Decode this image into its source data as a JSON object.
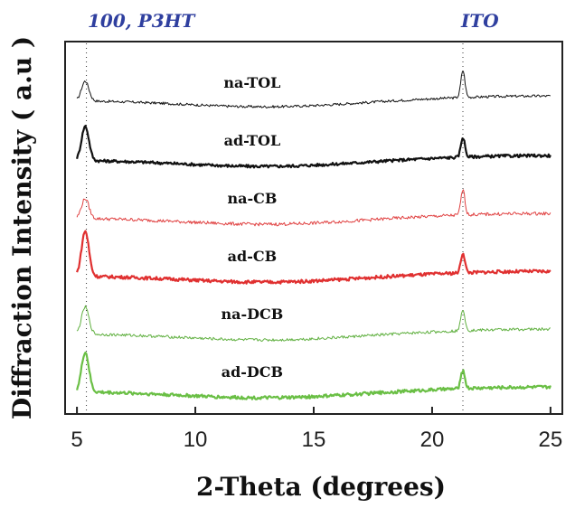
{
  "chart_data": {
    "type": "line",
    "xlabel": "2-Theta (degrees)",
    "ylabel": "Diffraction Intensity ( a.u )",
    "xlim": [
      4.5,
      25.5
    ],
    "xticks": [
      5,
      10,
      15,
      20,
      25
    ],
    "y_tick_labels": false,
    "grid": false,
    "annotations": [
      {
        "text": "100, P3HT",
        "x": 5.4
      },
      {
        "text": "ITO",
        "x": 21.3
      }
    ],
    "reference_lines_x": [
      5.4,
      21.3
    ],
    "series": [
      {
        "name": "na-TOL",
        "color": "#111111",
        "width": 1.0,
        "offset": 6,
        "base": 0.35,
        "peak100": 0.55,
        "peakITO": 0.75,
        "noise": 0.07
      },
      {
        "name": "ad-TOL",
        "color": "#111111",
        "width": 2.2,
        "offset": 5,
        "base": 0.3,
        "peak100": 0.95,
        "peakITO": 0.55,
        "noise": 0.08
      },
      {
        "name": "na-CB",
        "color": "#e04040",
        "width": 1.0,
        "offset": 4,
        "base": 0.3,
        "peak100": 0.55,
        "peakITO": 0.7,
        "noise": 0.09
      },
      {
        "name": "ad-CB",
        "color": "#e03030",
        "width": 2.2,
        "offset": 3,
        "base": 0.3,
        "peak100": 1.25,
        "peakITO": 0.55,
        "noise": 0.09
      },
      {
        "name": "na-DCB",
        "color": "#60b040",
        "width": 1.0,
        "offset": 2,
        "base": 0.3,
        "peak100": 0.75,
        "peakITO": 0.6,
        "noise": 0.08
      },
      {
        "name": "ad-DCB",
        "color": "#6abf45",
        "width": 2.2,
        "offset": 1,
        "base": 0.3,
        "peak100": 1.1,
        "peakITO": 0.5,
        "noise": 0.09
      }
    ]
  }
}
